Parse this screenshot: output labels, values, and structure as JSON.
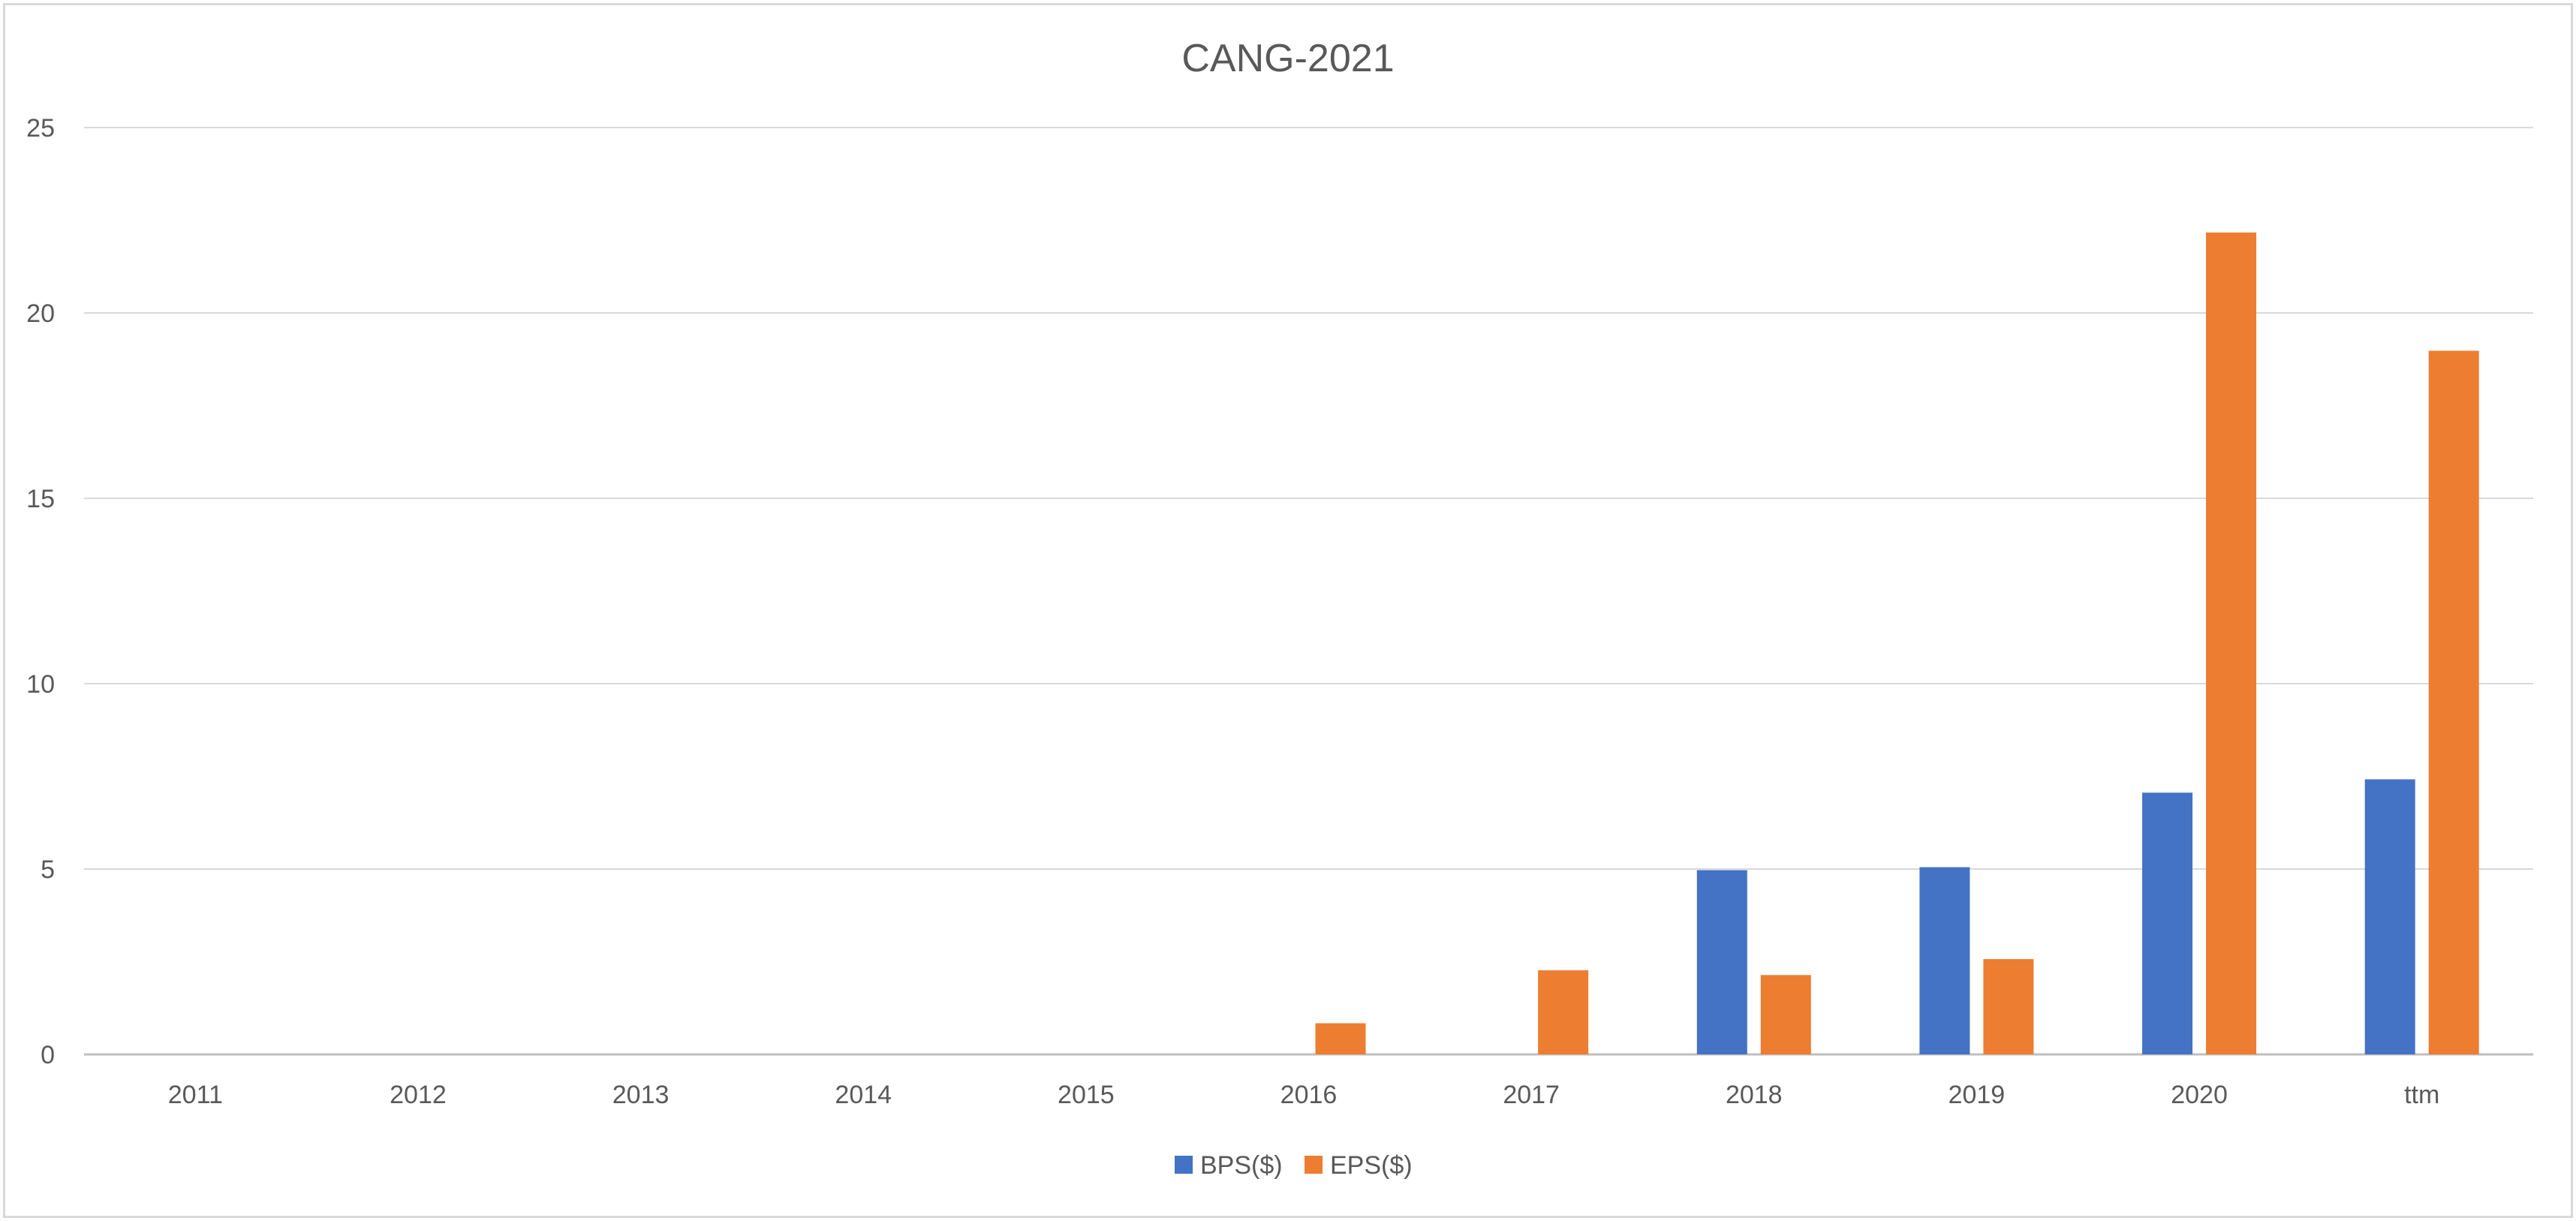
{
  "chart_data": {
    "type": "bar",
    "title": "CANG-2021",
    "xlabel": "",
    "ylabel": "",
    "categories": [
      "2011",
      "2012",
      "2013",
      "2014",
      "2015",
      "2016",
      "2017",
      "2018",
      "2019",
      "2020",
      "ttm"
    ],
    "series": [
      {
        "name": "BPS($)",
        "color": "#4472C4",
        "values": [
          null,
          null,
          null,
          null,
          null,
          null,
          null,
          4.97,
          5.05,
          7.06,
          7.42
        ]
      },
      {
        "name": "EPS($)",
        "color": "#ED7D31",
        "values": [
          null,
          null,
          null,
          null,
          null,
          0.84,
          2.27,
          2.14,
          2.57,
          22.17,
          18.98
        ]
      }
    ],
    "ylim": [
      0,
      25
    ],
    "yticks": [
      "0",
      "5",
      "10",
      "15",
      "20",
      "25"
    ],
    "grid": true,
    "legend_position": "bottom"
  }
}
